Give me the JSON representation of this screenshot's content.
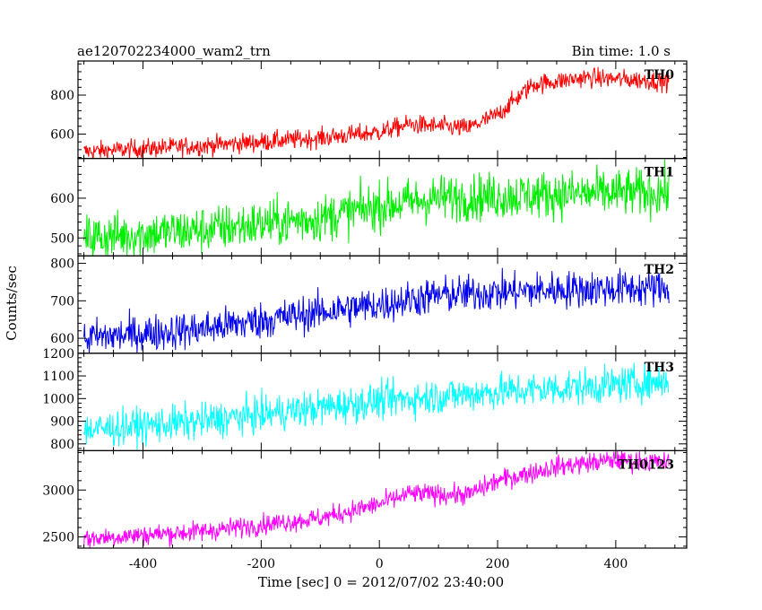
{
  "chart_data": {
    "type": "line",
    "title": "ae120702234000_wam2_trn",
    "subtitle": "Bin time: 1.0 s",
    "xlabel": "Time [sec] 0 = 2012/07/02 23:40:00",
    "ylabel": "Counts/sec",
    "xlim": [
      -510,
      520
    ],
    "x_ticks": [
      -400,
      -200,
      0,
      200,
      400
    ],
    "x_start": -500,
    "x_end": 490,
    "x_step": 1,
    "grid": false,
    "panels": [
      {
        "name": "TH0",
        "color": "#ff0000",
        "ylim": [
          475,
          975
        ],
        "y_ticks": [
          600,
          800
        ],
        "trend": [
          [
            -500,
            510
          ],
          [
            -300,
            540
          ],
          [
            -100,
            580
          ],
          [
            0,
            610
          ],
          [
            50,
            650
          ],
          [
            150,
            630
          ],
          [
            200,
            700
          ],
          [
            260,
            855
          ],
          [
            350,
            890
          ],
          [
            420,
            880
          ],
          [
            490,
            870
          ]
        ],
        "noise": 25
      },
      {
        "name": "TH1",
        "color": "#00ee00",
        "ylim": [
          455,
          700
        ],
        "y_ticks": [
          500,
          600
        ],
        "trend": [
          [
            -500,
            500
          ],
          [
            -300,
            520
          ],
          [
            -100,
            550
          ],
          [
            0,
            580
          ],
          [
            100,
            600
          ],
          [
            300,
            610
          ],
          [
            490,
            615
          ]
        ],
        "noise": 30
      },
      {
        "name": "TH2",
        "color": "#0000ee",
        "ylim": [
          560,
          820
        ],
        "y_ticks": [
          600,
          700,
          800
        ],
        "trend": [
          [
            -500,
            600
          ],
          [
            -300,
            625
          ],
          [
            -100,
            670
          ],
          [
            0,
            690
          ],
          [
            100,
            715
          ],
          [
            300,
            730
          ],
          [
            490,
            735
          ]
        ],
        "noise": 25
      },
      {
        "name": "TH3",
        "color": "#00ffff",
        "ylim": [
          770,
          1200
        ],
        "y_ticks": [
          800,
          900,
          1000,
          1100,
          1200
        ],
        "trend": [
          [
            -500,
            860
          ],
          [
            -300,
            900
          ],
          [
            -100,
            960
          ],
          [
            0,
            990
          ],
          [
            200,
            1030
          ],
          [
            400,
            1060
          ],
          [
            490,
            1080
          ]
        ],
        "noise": 40
      },
      {
        "name": "TH0123",
        "color": "#ff00ff",
        "ylim": [
          2380,
          3420
        ],
        "y_ticks": [
          2500,
          3000
        ],
        "trend": [
          [
            -500,
            2480
          ],
          [
            -300,
            2560
          ],
          [
            -100,
            2700
          ],
          [
            0,
            2850
          ],
          [
            50,
            2960
          ],
          [
            150,
            2950
          ],
          [
            200,
            3100
          ],
          [
            300,
            3250
          ],
          [
            400,
            3320
          ],
          [
            490,
            3290
          ]
        ],
        "noise": 55
      }
    ]
  }
}
